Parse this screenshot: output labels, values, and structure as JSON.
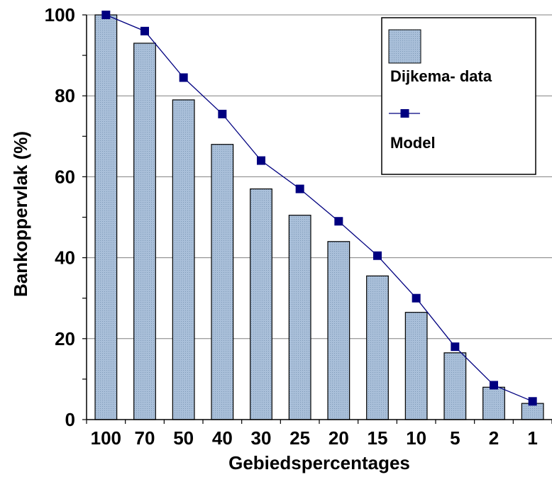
{
  "chart_data": {
    "type": "bar",
    "title": "",
    "xlabel": "Gebiedspercentages",
    "ylabel": "Bankoppervlak (%)",
    "categories": [
      "100",
      "70",
      "50",
      "40",
      "30",
      "25",
      "20",
      "15",
      "10",
      "5",
      "2",
      "1"
    ],
    "ylim": [
      0,
      100
    ],
    "yticks": [
      "0",
      "20",
      "40",
      "60",
      "80",
      "100"
    ],
    "grid": true,
    "legend_position": "top-right",
    "series": [
      {
        "name": "Dijkema- data",
        "type": "bar",
        "color": "#a9bfd9",
        "values": [
          100,
          93,
          79,
          68,
          57,
          50.5,
          44,
          35.5,
          26.5,
          16.5,
          8,
          4
        ]
      },
      {
        "name": "Model",
        "type": "line",
        "color": "#000080",
        "values": [
          100,
          96,
          84.5,
          75.5,
          64,
          57,
          49,
          40.5,
          30,
          18,
          8.5,
          4.5
        ]
      }
    ]
  }
}
